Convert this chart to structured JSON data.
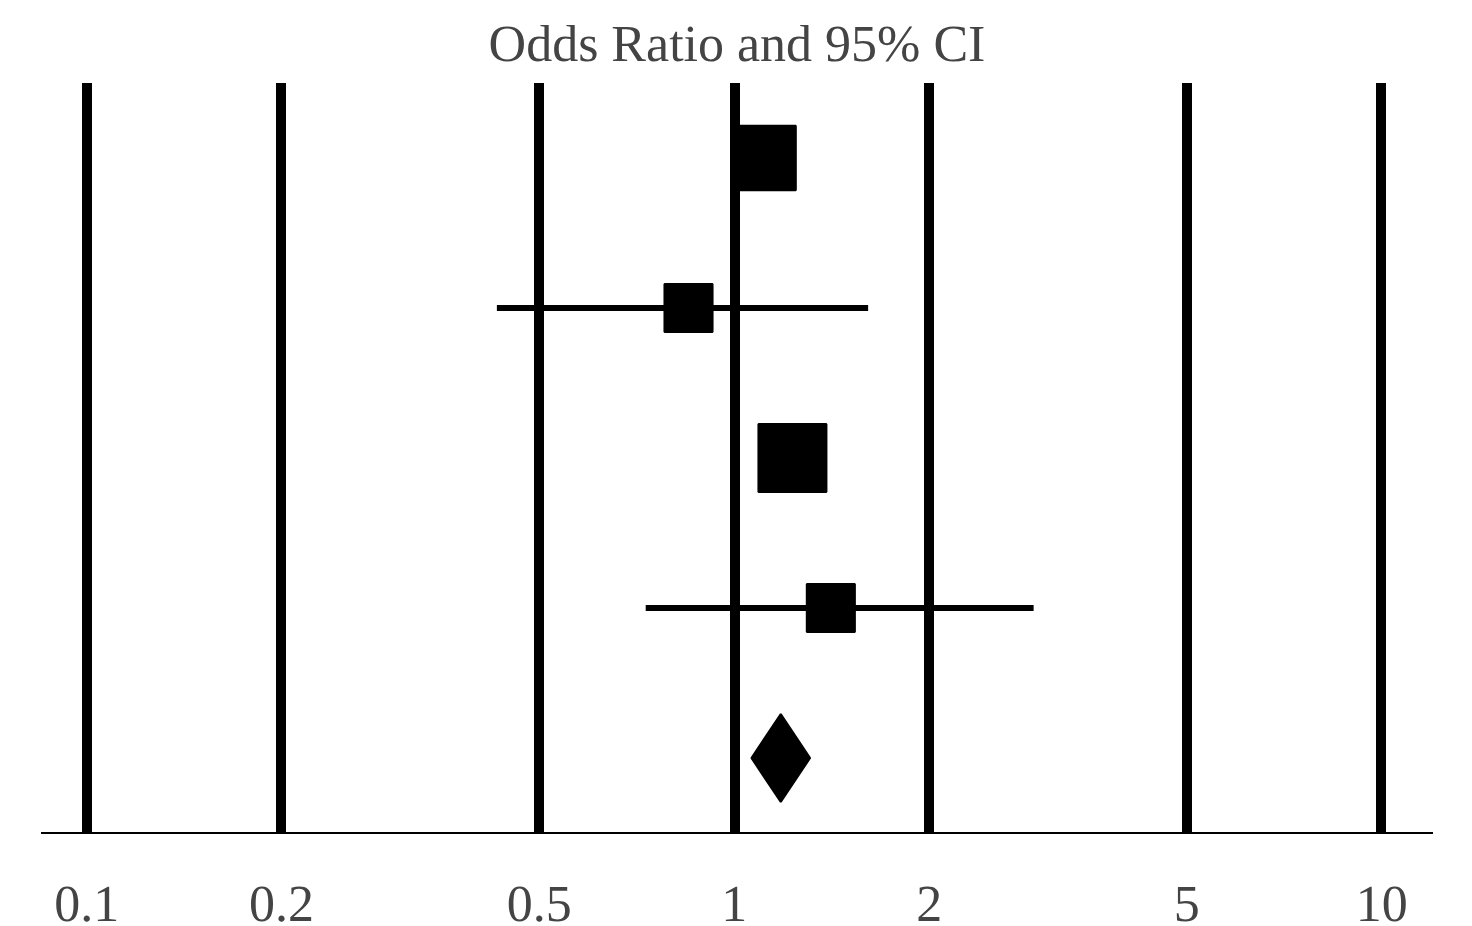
{
  "chart_data": {
    "type": "bubble",
    "title": "Odds Ratio and 95% CI",
    "orientation": "horizontal",
    "categories": [
      null,
      null,
      null,
      null,
      null
    ],
    "series": [
      {
        "color": "#000000",
        "marker": "square",
        "values": [
          1.11,
          0.85,
          1.23,
          1.41,
          null
        ],
        "sizes": [
          0.9,
          0.5,
          1,
          0.5,
          null
        ],
        "errors": [
          null,
          [
            0.43,
            1.61
          ],
          null,
          [
            0.73,
            2.9
          ],
          null
        ]
      },
      {
        "type": "scatter",
        "color": "#000000",
        "marker": "diamond",
        "values": [
          null,
          null,
          null,
          null,
          1.18
        ]
      }
    ],
    "log": "x",
    "xlim": [
      0.085,
      12
    ],
    "xticks": [
      0.1,
      0.2,
      0.5,
      1,
      2,
      5,
      10
    ],
    "grid": "x",
    "tick_labels": "x"
  }
}
